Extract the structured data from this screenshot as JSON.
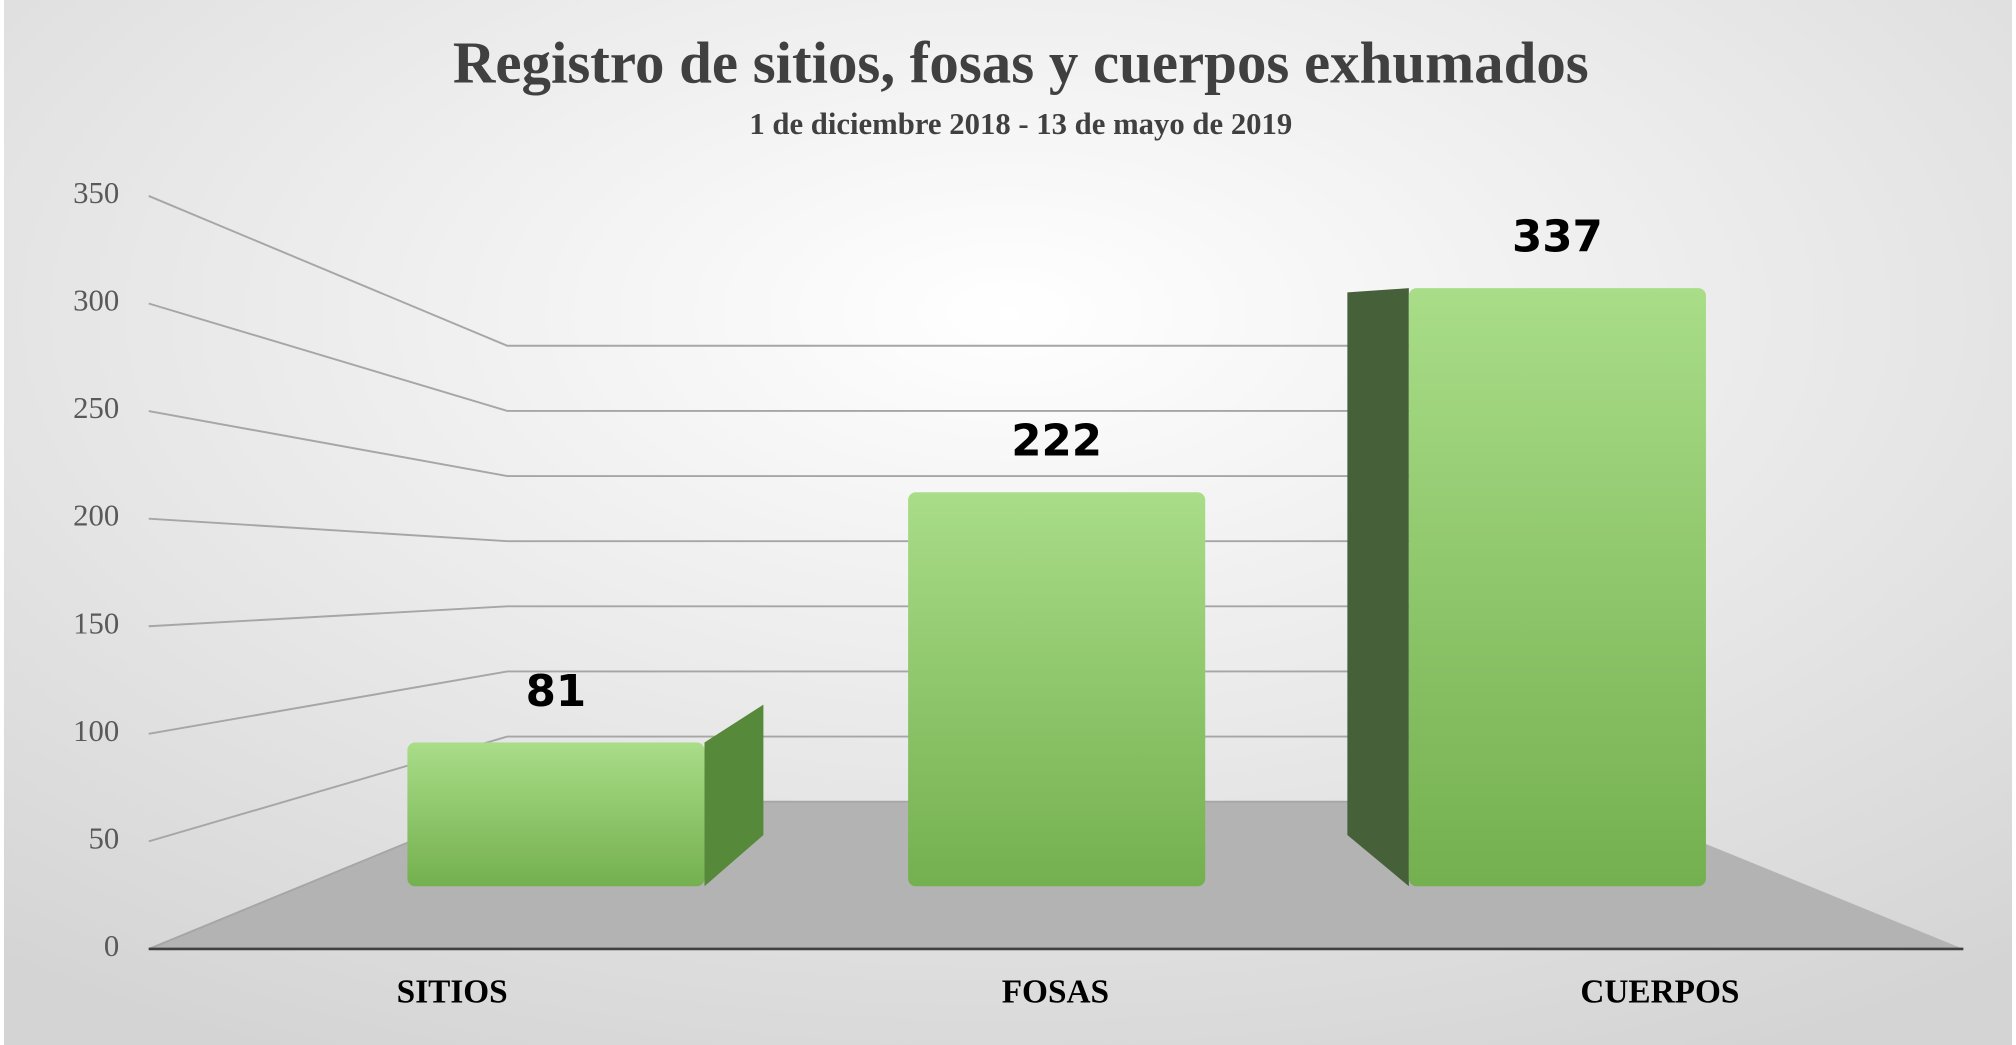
{
  "chart_data": {
    "type": "bar",
    "title": "Registro de sitios, fosas y cuerpos exhumados",
    "subtitle": "1 de diciembre 2018 - 13 de mayo de 2019",
    "categories": [
      "SITIOS",
      "FOSAS",
      "CUERPOS"
    ],
    "values": [
      81,
      222,
      337
    ],
    "color": "#7fbf5a",
    "ylim": [
      0,
      350
    ],
    "yticks": [
      0,
      50,
      100,
      150,
      200,
      250,
      300,
      350
    ],
    "grid": true
  }
}
